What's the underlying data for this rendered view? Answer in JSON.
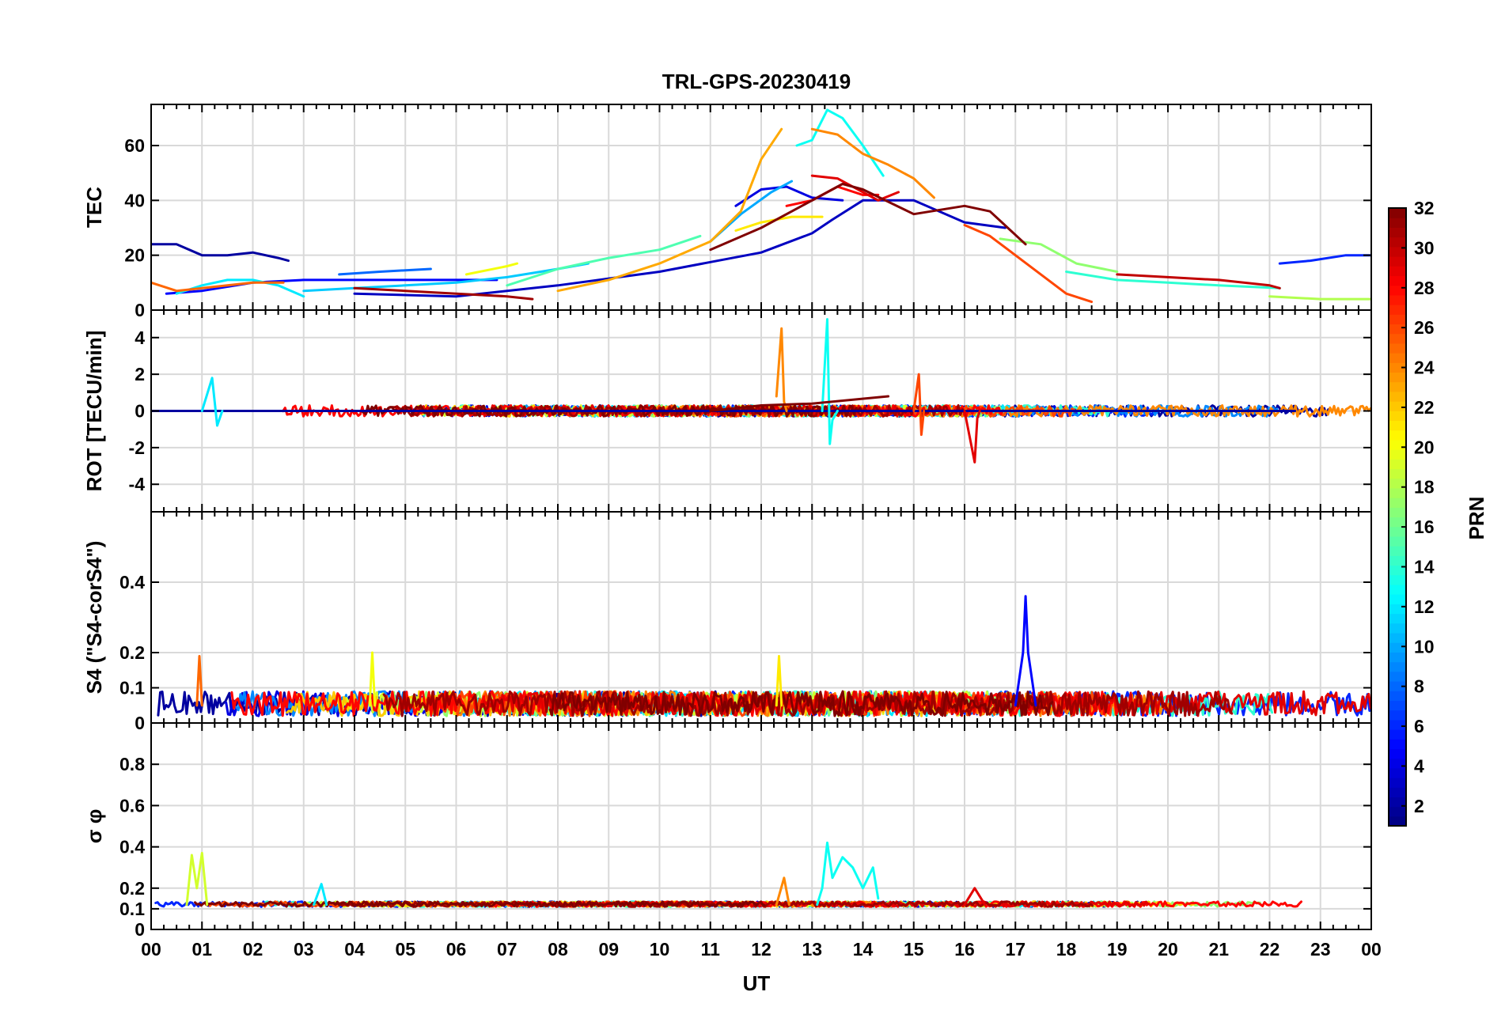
{
  "chart_data": {
    "title": "TRL-GPS-20230419",
    "type": "line",
    "xlabel": "UT",
    "x_ticks": [
      "00",
      "01",
      "02",
      "03",
      "04",
      "05",
      "06",
      "07",
      "08",
      "09",
      "10",
      "11",
      "12",
      "13",
      "14",
      "15",
      "16",
      "17",
      "18",
      "19",
      "20",
      "21",
      "22",
      "23",
      "00"
    ],
    "xlim": [
      0,
      24
    ],
    "grid": true,
    "colorbar": {
      "label": "PRN",
      "range": [
        1,
        32
      ],
      "ticks": [
        2,
        4,
        6,
        8,
        10,
        12,
        14,
        16,
        18,
        20,
        22,
        24,
        26,
        28,
        30,
        32
      ],
      "colormap": "jet"
    },
    "panels": [
      {
        "id": "tec",
        "ylabel": "TEC",
        "ylim": [
          0,
          75
        ],
        "yticks": [
          0,
          20,
          40,
          60
        ],
        "series": [
          {
            "prn": 2,
            "x": [
              0,
              0.5,
              1,
              1.5,
              2,
              2.5,
              2.7
            ],
            "y": [
              24,
              24,
              20,
              20,
              21,
              19,
              18
            ]
          },
          {
            "prn": 3,
            "x": [
              4,
              6,
              8,
              10,
              12,
              13,
              13.4,
              14,
              15,
              16,
              16.8
            ],
            "y": [
              6,
              5,
              9,
              14,
              21,
              28,
              33,
              40,
              40,
              32,
              30
            ]
          },
          {
            "prn": 4,
            "x": [
              11.5,
              12,
              12.5,
              13,
              13.6
            ],
            "y": [
              38,
              44,
              45,
              41,
              40
            ]
          },
          {
            "prn": 5,
            "x": [
              0.3,
              1,
              2,
              3,
              4,
              5,
              6,
              6.8
            ],
            "y": [
              6,
              7,
              10,
              11,
              11,
              11,
              11,
              11
            ]
          },
          {
            "prn": 6,
            "x": [
              22.2,
              22.8,
              23.5,
              24
            ],
            "y": [
              17,
              18,
              20,
              20
            ]
          },
          {
            "prn": 8,
            "x": [
              3.7,
              4.5,
              5.5
            ],
            "y": [
              13,
              14,
              15
            ]
          },
          {
            "prn": 10,
            "x": [
              11,
              11.6,
              12.2,
              12.6
            ],
            "y": [
              25,
              35,
              43,
              47
            ]
          },
          {
            "prn": 11,
            "x": [
              3,
              4,
              5,
              6,
              7,
              8,
              8.6
            ],
            "y": [
              7,
              8,
              9,
              10,
              12,
              15,
              17
            ]
          },
          {
            "prn": 12,
            "x": [
              0.5,
              1,
              1.5,
              2,
              2.5,
              3
            ],
            "y": [
              6,
              9,
              11,
              11,
              9,
              5
            ]
          },
          {
            "prn": 13,
            "x": [
              12.7,
              13,
              13.3,
              13.6,
              14,
              14.4
            ],
            "y": [
              60,
              62,
              73,
              70,
              60,
              49
            ]
          },
          {
            "prn": 14,
            "x": [
              18,
              19,
              20,
              21,
              22.2
            ],
            "y": [
              14,
              11,
              10,
              9,
              8
            ]
          },
          {
            "prn": 15,
            "x": [
              7,
              8,
              9,
              10,
              10.8
            ],
            "y": [
              9,
              15,
              19,
              22,
              27
            ]
          },
          {
            "prn": 17,
            "x": [
              16.7,
              17.5,
              18.2,
              19
            ],
            "y": [
              26,
              24,
              17,
              14
            ]
          },
          {
            "prn": 18,
            "x": [
              22,
              23,
              24
            ],
            "y": [
              5,
              4,
              4
            ]
          },
          {
            "prn": 20,
            "x": [
              6.2,
              7,
              7.2
            ],
            "y": [
              13,
              16,
              17
            ]
          },
          {
            "prn": 21,
            "x": [
              11.5,
              12,
              12.6,
              13.2
            ],
            "y": [
              29,
              32,
              34,
              34
            ]
          },
          {
            "prn": 23,
            "x": [
              8,
              9,
              10,
              11,
              11.6,
              12,
              12.4
            ],
            "y": [
              7,
              11,
              17,
              25,
              36,
              55,
              66
            ]
          },
          {
            "prn": 24,
            "x": [
              13,
              13.5,
              14,
              14.5,
              15,
              15.4
            ],
            "y": [
              66,
              64,
              57,
              53,
              48,
              41
            ]
          },
          {
            "prn": 25,
            "x": [
              0,
              0.5,
              1,
              2,
              2.6
            ],
            "y": [
              10,
              7,
              8,
              10,
              10
            ]
          },
          {
            "prn": 26,
            "x": [
              16,
              16.5,
              17,
              17.5,
              18,
              18.5
            ],
            "y": [
              31,
              27,
              20,
              13,
              6,
              3
            ]
          },
          {
            "prn": 28,
            "x": [
              12.5,
              13,
              13.5,
              14,
              14.3
            ],
            "y": [
              38,
              40,
              45,
              42,
              42
            ]
          },
          {
            "prn": 29,
            "x": [
              13,
              13.5,
              14,
              14.3,
              14.7
            ],
            "y": [
              49,
              48,
              43,
              40,
              43
            ]
          },
          {
            "prn": 30,
            "x": [
              19,
              20,
              21,
              22,
              22.2
            ],
            "y": [
              13,
              12,
              11,
              9,
              8
            ]
          },
          {
            "prn": 31,
            "x": [
              4,
              5,
              6,
              7,
              7.5
            ],
            "y": [
              8,
              7,
              6,
              5,
              4
            ]
          },
          {
            "prn": 32,
            "x": [
              11,
              12,
              13,
              13.6,
              14,
              15,
              16,
              16.5,
              17.2
            ],
            "y": [
              22,
              30,
              40,
              46,
              44,
              35,
              38,
              36,
              24
            ]
          }
        ]
      },
      {
        "id": "rot",
        "ylabel": "ROT [TECU/min]",
        "ylim": [
          -5.5,
          5.5
        ],
        "yticks": [
          -4,
          -2,
          0,
          2,
          4
        ],
        "series": [
          {
            "prn": 2,
            "x": [
              0,
              4,
              7,
              10,
              13,
              16,
              17,
              20,
              22.5
            ],
            "y": [
              0,
              0,
              0,
              0,
              0,
              0,
              0,
              0,
              0
            ]
          },
          {
            "prn": 13,
            "x": [
              13.2,
              13.3,
              13.35,
              13.4,
              13.5
            ],
            "y": [
              0,
              5,
              -1.8,
              -0.5,
              0
            ]
          },
          {
            "prn": 24,
            "x": [
              12.3,
              12.4,
              12.45,
              12.5
            ],
            "y": [
              0.8,
              4.5,
              0.5,
              0
            ]
          },
          {
            "prn": 29,
            "x": [
              16,
              16.2,
              16.25,
              16.3
            ],
            "y": [
              0,
              -2.8,
              -0.4,
              0
            ]
          },
          {
            "prn": 26,
            "x": [
              15,
              15.1,
              15.15,
              15.2
            ],
            "y": [
              0,
              2,
              -1.3,
              0
            ]
          },
          {
            "prn": 12,
            "x": [
              1,
              1.2,
              1.3,
              1.4
            ],
            "y": [
              0,
              1.8,
              -0.8,
              0
            ]
          },
          {
            "prn": 32,
            "x": [
              11,
              12,
              13,
              14.5
            ],
            "y": [
              0,
              0.3,
              0.4,
              0.8
            ]
          }
        ]
      },
      {
        "id": "s4",
        "ylabel": "S4 (\"S4-corS4\")",
        "ylim": [
          0,
          0.6
        ],
        "yticks": [
          0,
          0.1,
          0.2,
          0.4
        ],
        "series": [
          {
            "prn": 5,
            "x": [
              17,
              17.15,
              17.2,
              17.25,
              17.4
            ],
            "y": [
              0.05,
              0.2,
              0.36,
              0.2,
              0.05
            ]
          },
          {
            "prn": 25,
            "x": [
              0.9,
              0.95,
              1.0
            ],
            "y": [
              0.05,
              0.19,
              0.05
            ]
          },
          {
            "prn": 20,
            "x": [
              4.3,
              4.35,
              4.4
            ],
            "y": [
              0.05,
              0.2,
              0.05
            ]
          },
          {
            "prn": 21,
            "x": [
              12.3,
              12.35,
              12.4
            ],
            "y": [
              0.05,
              0.19,
              0.05
            ]
          }
        ]
      },
      {
        "id": "sigma",
        "ylabel": "σ φ",
        "ylim": [
          0,
          1
        ],
        "yticks": [
          0,
          0.1,
          0.2,
          0.4,
          0.6,
          0.8
        ],
        "series": [
          {
            "prn": 19,
            "x": [
              0.7,
              0.8,
              0.9,
              1.0,
              1.1
            ],
            "y": [
              0.12,
              0.36,
              0.2,
              0.37,
              0.12
            ]
          },
          {
            "prn": 13,
            "x": [
              13.1,
              13.2,
              13.3,
              13.4,
              13.6,
              13.8,
              14,
              14.2,
              14.3
            ],
            "y": [
              0.12,
              0.2,
              0.42,
              0.25,
              0.35,
              0.3,
              0.2,
              0.3,
              0.15
            ]
          },
          {
            "prn": 24,
            "x": [
              12.3,
              12.45,
              12.55
            ],
            "y": [
              0.12,
              0.25,
              0.12
            ]
          },
          {
            "prn": 12,
            "x": [
              3.2,
              3.35,
              3.45
            ],
            "y": [
              0.12,
              0.22,
              0.12
            ]
          },
          {
            "prn": 29,
            "x": [
              16,
              16.2,
              16.4
            ],
            "y": [
              0.12,
              0.2,
              0.12
            ]
          }
        ]
      }
    ]
  }
}
